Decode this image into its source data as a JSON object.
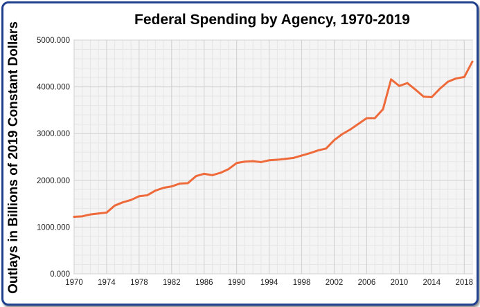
{
  "chart_data": {
    "type": "line",
    "title": "Federal Spending by Agency, 1970-2019",
    "xlabel": "",
    "ylabel": "Outlays in Billions of 2019 Constant Dollars",
    "xlim": [
      1970,
      2019
    ],
    "ylim": [
      0,
      5000
    ],
    "x_ticks": [
      "1970",
      "1974",
      "1978",
      "1982",
      "1986",
      "1990",
      "1994",
      "1998",
      "2002",
      "2006",
      "2010",
      "2014",
      "2018"
    ],
    "y_ticks": [
      "0.000",
      "1000.000",
      "2000.000",
      "3000.000",
      "4000.000",
      "5000.000"
    ],
    "grid": true,
    "line_color": "#ee6a3a",
    "x": [
      1970,
      1971,
      1972,
      1973,
      1974,
      1975,
      1976,
      1977,
      1978,
      1979,
      1980,
      1981,
      1982,
      1983,
      1984,
      1985,
      1986,
      1987,
      1988,
      1989,
      1990,
      1991,
      1992,
      1993,
      1994,
      1995,
      1996,
      1997,
      1998,
      1999,
      2000,
      2001,
      2002,
      2003,
      2004,
      2005,
      2006,
      2007,
      2008,
      2009,
      2010,
      2011,
      2012,
      2013,
      2014,
      2015,
      2016,
      2017,
      2018,
      2019
    ],
    "values": [
      1220,
      1230,
      1270,
      1290,
      1310,
      1460,
      1530,
      1580,
      1660,
      1680,
      1780,
      1840,
      1870,
      1930,
      1940,
      2090,
      2140,
      2110,
      2160,
      2240,
      2370,
      2400,
      2410,
      2390,
      2430,
      2440,
      2460,
      2480,
      2530,
      2580,
      2640,
      2680,
      2860,
      2990,
      3090,
      3210,
      3330,
      3330,
      3520,
      4160,
      4020,
      4080,
      3940,
      3790,
      3780,
      3960,
      4110,
      4180,
      4210,
      4540
    ]
  }
}
